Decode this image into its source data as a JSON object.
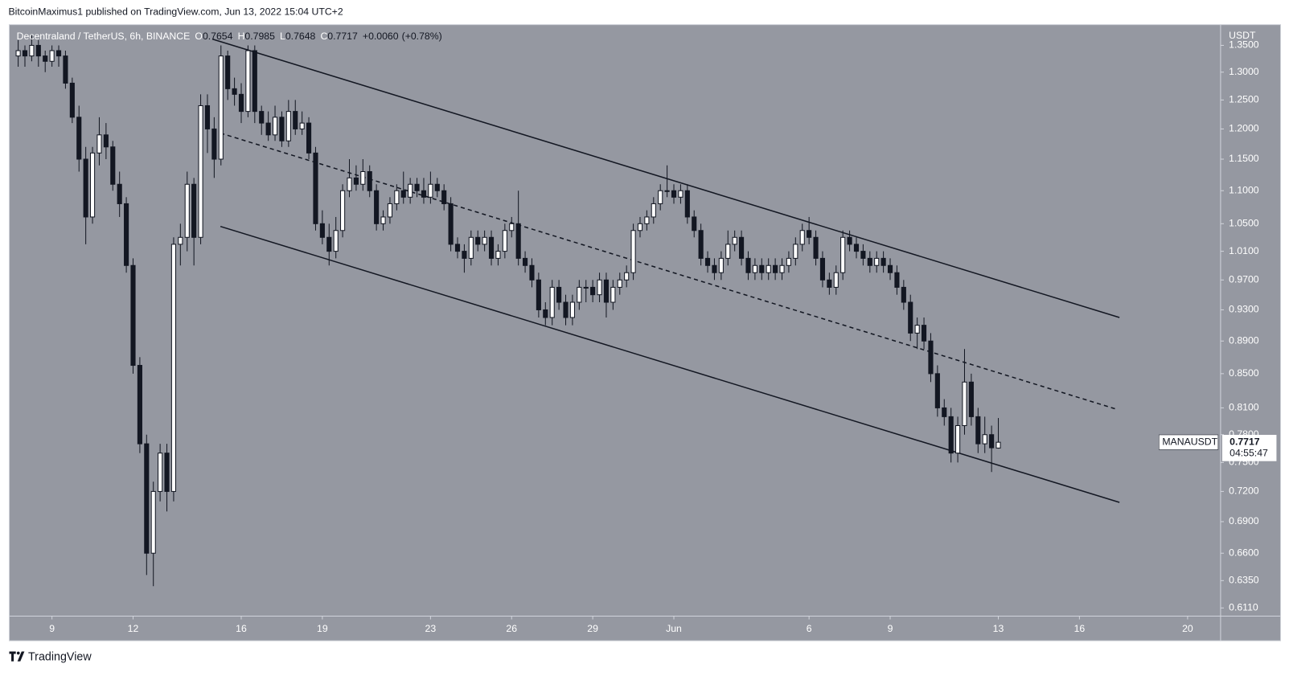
{
  "chart_data": {
    "type": "candlestick",
    "published": "BitcoinMaximus1 published on TradingView.com, Jun 13, 2022 15:04 UTC+2",
    "title": "Decentraland / TetherUS, 6h, BINANCE",
    "ohlc_labels": [
      "O",
      "H",
      "L",
      "C"
    ],
    "change": "+0.0060",
    "change_pct": "(+0.78%)",
    "y_axis_unit": "USDT",
    "countdown": "04:55:47",
    "brand": "TradingView",
    "log_scale": true,
    "background": "#9598a1",
    "up_color": "#ffffff",
    "down_color": "#131722",
    "x": [
      7.75,
      8,
      8.25,
      8.5,
      8.75,
      9,
      9.25,
      9.5,
      9.75,
      10,
      10.25,
      10.5,
      10.75,
      11,
      11.25,
      11.5,
      11.75,
      12,
      12.25,
      12.5,
      12.75,
      13,
      13.25,
      13.5,
      13.75,
      14,
      14.25,
      14.5,
      14.75,
      15,
      15.25,
      15.5,
      15.75,
      16,
      16.25,
      16.5,
      16.75,
      17,
      17.25,
      17.5,
      17.75,
      18,
      18.25,
      18.5,
      18.75,
      19,
      19.25,
      19.5,
      19.75,
      20,
      20.25,
      20.5,
      20.75,
      21,
      21.25,
      21.5,
      21.75,
      22,
      22.25,
      22.5,
      22.75,
      23,
      23.25,
      23.5,
      23.75,
      24,
      24.25,
      24.5,
      24.75,
      25,
      25.25,
      25.5,
      25.75,
      26,
      26.25,
      26.5,
      26.75,
      27,
      27.25,
      27.5,
      27.75,
      28,
      28.25,
      28.5,
      28.75,
      29,
      29.25,
      29.5,
      29.75,
      30,
      30.25,
      30.5,
      30.75,
      31,
      31.25,
      31.5,
      31.75,
      32,
      32.25,
      32.5,
      32.75,
      33,
      33.25,
      33.5,
      33.75,
      34,
      34.25,
      34.5,
      34.75,
      35,
      35.25,
      35.5,
      35.75,
      36,
      36.25,
      36.5,
      36.75,
      37,
      37.25,
      37.5,
      37.75,
      38,
      38.25,
      38.5,
      38.75,
      39,
      39.25,
      39.5,
      39.75,
      40,
      40.25,
      40.5,
      40.75,
      41,
      41.25,
      41.5,
      41.75,
      42,
      42.25,
      42.5,
      42.75,
      43,
      43.25,
      43.5,
      43.75,
      44
    ],
    "series": [
      {
        "name": "MANAUSDT",
        "values": [
          [
            1.33,
            1.36,
            1.31,
            1.34
          ],
          [
            1.34,
            1.35,
            1.31,
            1.33
          ],
          [
            1.33,
            1.37,
            1.32,
            1.35
          ],
          [
            1.35,
            1.36,
            1.31,
            1.33
          ],
          [
            1.33,
            1.34,
            1.3,
            1.32
          ],
          [
            1.32,
            1.35,
            1.31,
            1.34
          ],
          [
            1.34,
            1.35,
            1.31,
            1.33
          ],
          [
            1.33,
            1.34,
            1.27,
            1.28
          ],
          [
            1.28,
            1.29,
            1.21,
            1.22
          ],
          [
            1.22,
            1.24,
            1.13,
            1.15
          ],
          [
            1.15,
            1.17,
            1.02,
            1.06
          ],
          [
            1.06,
            1.17,
            1.05,
            1.16
          ],
          [
            1.16,
            1.22,
            1.14,
            1.19
          ],
          [
            1.19,
            1.21,
            1.15,
            1.17
          ],
          [
            1.17,
            1.18,
            1.1,
            1.11
          ],
          [
            1.11,
            1.13,
            1.06,
            1.08
          ],
          [
            1.08,
            1.09,
            0.98,
            0.99
          ],
          [
            0.99,
            1.0,
            0.85,
            0.86
          ],
          [
            0.86,
            0.87,
            0.76,
            0.77
          ],
          [
            0.77,
            0.78,
            0.64,
            0.66
          ],
          [
            0.66,
            0.73,
            0.63,
            0.72
          ],
          [
            0.72,
            0.77,
            0.71,
            0.76
          ],
          [
            0.76,
            0.77,
            0.7,
            0.72
          ],
          [
            0.72,
            1.03,
            0.71,
            1.02
          ],
          [
            1.02,
            1.05,
            0.99,
            1.03
          ],
          [
            1.03,
            1.13,
            1.01,
            1.11
          ],
          [
            1.11,
            1.12,
            0.99,
            1.03
          ],
          [
            1.03,
            1.26,
            1.02,
            1.24
          ],
          [
            1.24,
            1.26,
            1.16,
            1.2
          ],
          [
            1.2,
            1.22,
            1.12,
            1.15
          ],
          [
            1.15,
            1.35,
            1.14,
            1.33
          ],
          [
            1.33,
            1.34,
            1.25,
            1.27
          ],
          [
            1.27,
            1.29,
            1.24,
            1.26
          ],
          [
            1.26,
            1.28,
            1.21,
            1.23
          ],
          [
            1.23,
            1.35,
            1.22,
            1.34
          ],
          [
            1.34,
            1.35,
            1.21,
            1.23
          ],
          [
            1.23,
            1.24,
            1.19,
            1.21
          ],
          [
            1.21,
            1.23,
            1.18,
            1.19
          ],
          [
            1.19,
            1.24,
            1.18,
            1.22
          ],
          [
            1.22,
            1.23,
            1.17,
            1.18
          ],
          [
            1.18,
            1.25,
            1.17,
            1.23
          ],
          [
            1.23,
            1.25,
            1.19,
            1.2
          ],
          [
            1.2,
            1.23,
            1.19,
            1.21
          ],
          [
            1.21,
            1.22,
            1.15,
            1.16
          ],
          [
            1.16,
            1.17,
            1.04,
            1.05
          ],
          [
            1.05,
            1.07,
            1.02,
            1.03
          ],
          [
            1.03,
            1.05,
            0.99,
            1.01
          ],
          [
            1.01,
            1.06,
            1.0,
            1.04
          ],
          [
            1.04,
            1.11,
            1.03,
            1.1
          ],
          [
            1.1,
            1.15,
            1.09,
            1.12
          ],
          [
            1.12,
            1.14,
            1.1,
            1.11
          ],
          [
            1.11,
            1.15,
            1.1,
            1.13
          ],
          [
            1.13,
            1.14,
            1.09,
            1.1
          ],
          [
            1.1,
            1.11,
            1.04,
            1.05
          ],
          [
            1.05,
            1.07,
            1.04,
            1.06
          ],
          [
            1.06,
            1.09,
            1.05,
            1.08
          ],
          [
            1.08,
            1.11,
            1.07,
            1.1
          ],
          [
            1.1,
            1.13,
            1.08,
            1.09
          ],
          [
            1.09,
            1.12,
            1.08,
            1.11
          ],
          [
            1.11,
            1.12,
            1.09,
            1.1
          ],
          [
            1.1,
            1.12,
            1.08,
            1.09
          ],
          [
            1.09,
            1.13,
            1.08,
            1.11
          ],
          [
            1.11,
            1.12,
            1.09,
            1.1
          ],
          [
            1.1,
            1.11,
            1.07,
            1.08
          ],
          [
            1.08,
            1.09,
            1.01,
            1.02
          ],
          [
            1.02,
            1.03,
            1.0,
            1.01
          ],
          [
            1.01,
            1.02,
            0.98,
            1.0
          ],
          [
            1.0,
            1.04,
            0.99,
            1.03
          ],
          [
            1.03,
            1.04,
            1.01,
            1.02
          ],
          [
            1.02,
            1.04,
            1.01,
            1.03
          ],
          [
            1.03,
            1.04,
            0.99,
            1.0
          ],
          [
            1.0,
            1.02,
            0.99,
            1.01
          ],
          [
            1.01,
            1.05,
            1.0,
            1.04
          ],
          [
            1.04,
            1.06,
            1.03,
            1.05
          ],
          [
            1.05,
            1.1,
            0.99,
            1.0
          ],
          [
            1.0,
            1.01,
            0.98,
            0.99
          ],
          [
            0.99,
            1.0,
            0.96,
            0.97
          ],
          [
            0.97,
            0.98,
            0.92,
            0.93
          ],
          [
            0.93,
            0.94,
            0.91,
            0.92
          ],
          [
            0.92,
            0.97,
            0.91,
            0.96
          ],
          [
            0.96,
            0.97,
            0.93,
            0.94
          ],
          [
            0.94,
            0.95,
            0.91,
            0.92
          ],
          [
            0.92,
            0.95,
            0.91,
            0.94
          ],
          [
            0.94,
            0.97,
            0.93,
            0.96
          ],
          [
            0.96,
            0.97,
            0.94,
            0.96
          ],
          [
            0.96,
            0.97,
            0.94,
            0.95
          ],
          [
            0.95,
            0.98,
            0.94,
            0.97
          ],
          [
            0.97,
            0.98,
            0.92,
            0.94
          ],
          [
            0.94,
            0.97,
            0.93,
            0.96
          ],
          [
            0.96,
            0.98,
            0.95,
            0.97
          ],
          [
            0.97,
            0.99,
            0.96,
            0.98
          ],
          [
            0.98,
            1.05,
            0.97,
            1.04
          ],
          [
            1.04,
            1.06,
            1.03,
            1.05
          ],
          [
            1.05,
            1.07,
            1.04,
            1.06
          ],
          [
            1.06,
            1.09,
            1.05,
            1.08
          ],
          [
            1.08,
            1.11,
            1.07,
            1.1
          ],
          [
            1.1,
            1.14,
            1.09,
            1.1
          ],
          [
            1.1,
            1.11,
            1.08,
            1.09
          ],
          [
            1.09,
            1.11,
            1.08,
            1.1
          ],
          [
            1.1,
            1.11,
            1.05,
            1.06
          ],
          [
            1.06,
            1.07,
            1.03,
            1.04
          ],
          [
            1.04,
            1.05,
            0.99,
            1.0
          ],
          [
            1.0,
            1.01,
            0.98,
            0.99
          ],
          [
            0.99,
            1.0,
            0.97,
            0.98
          ],
          [
            0.98,
            1.01,
            0.97,
            1.0
          ],
          [
            1.0,
            1.04,
            0.99,
            1.02
          ],
          [
            1.02,
            1.04,
            1.01,
            1.03
          ],
          [
            1.03,
            1.04,
            0.99,
            1.0
          ],
          [
            1.0,
            1.01,
            0.97,
            0.98
          ],
          [
            0.98,
            1.0,
            0.97,
            0.99
          ],
          [
            0.99,
            1.0,
            0.97,
            0.98
          ],
          [
            0.98,
            1.0,
            0.97,
            0.99
          ],
          [
            0.99,
            1.0,
            0.97,
            0.98
          ],
          [
            0.98,
            1.0,
            0.97,
            0.99
          ],
          [
            0.99,
            1.01,
            0.98,
            1.0
          ],
          [
            1.0,
            1.03,
            0.99,
            1.02
          ],
          [
            1.02,
            1.05,
            1.01,
            1.04
          ],
          [
            1.04,
            1.06,
            1.02,
            1.03
          ],
          [
            1.03,
            1.04,
            0.99,
            1.0
          ],
          [
            1.0,
            1.01,
            0.96,
            0.97
          ],
          [
            0.97,
            0.98,
            0.95,
            0.96
          ],
          [
            0.96,
            0.99,
            0.95,
            0.98
          ],
          [
            0.98,
            1.04,
            0.97,
            1.03
          ],
          [
            1.03,
            1.04,
            1.01,
            1.02
          ],
          [
            1.02,
            1.03,
            1.0,
            1.01
          ],
          [
            1.01,
            1.02,
            0.99,
            1.0
          ],
          [
            1.0,
            1.01,
            0.98,
            0.99
          ],
          [
            0.99,
            1.01,
            0.98,
            1.0
          ],
          [
            1.0,
            1.01,
            0.98,
            0.99
          ],
          [
            0.99,
            1.0,
            0.97,
            0.98
          ],
          [
            0.98,
            0.99,
            0.95,
            0.96
          ],
          [
            0.96,
            0.97,
            0.93,
            0.94
          ],
          [
            0.94,
            0.95,
            0.89,
            0.9
          ],
          [
            0.9,
            0.92,
            0.88,
            0.91
          ],
          [
            0.91,
            0.92,
            0.88,
            0.89
          ],
          [
            0.89,
            0.9,
            0.84,
            0.85
          ],
          [
            0.85,
            0.86,
            0.8,
            0.81
          ],
          [
            0.81,
            0.82,
            0.79,
            0.8
          ],
          [
            0.8,
            0.81,
            0.75,
            0.76
          ],
          [
            0.76,
            0.8,
            0.75,
            0.79
          ],
          [
            0.79,
            0.88,
            0.78,
            0.84
          ],
          [
            0.84,
            0.85,
            0.79,
            0.8
          ],
          [
            0.8,
            0.81,
            0.76,
            0.77
          ],
          [
            0.77,
            0.8,
            0.76,
            0.78
          ],
          [
            0.78,
            0.79,
            0.74,
            0.7657
          ],
          [
            0.7654,
            0.7985,
            0.7648,
            0.7717
          ]
        ]
      }
    ],
    "trendlines": [
      {
        "style": "solid",
        "x": [
          14.93,
          48.48
        ],
        "y": [
          1.362,
          0.92
        ]
      },
      {
        "style": "dashed",
        "x": [
          15.23,
          48.42
        ],
        "y": [
          1.193,
          0.808
        ]
      },
      {
        "style": "solid",
        "x": [
          15.23,
          48.48
        ],
        "y": [
          1.046,
          0.709
        ]
      }
    ],
    "xlim": [
      7.42,
      52.22
    ],
    "ylim": [
      0.604,
      1.39
    ],
    "xticks": [
      9,
      12,
      16,
      19,
      23,
      26,
      29,
      {
        "value": 32,
        "label": "Jun"
      },
      {
        "value": 37,
        "label": "6"
      },
      {
        "value": 40,
        "label": "9"
      },
      {
        "value": 44,
        "label": "13"
      },
      {
        "value": 47,
        "label": "16"
      },
      {
        "value": 51,
        "label": "20"
      }
    ],
    "yticks": [
      {
        "value": 1.35,
        "label": "1.3500"
      },
      {
        "value": 1.3,
        "label": "1.3000"
      },
      {
        "value": 1.25,
        "label": "1.2500"
      },
      {
        "value": 1.2,
        "label": "1.2000"
      },
      {
        "value": 1.15,
        "label": "1.1500"
      },
      {
        "value": 1.1,
        "label": "1.1000"
      },
      {
        "value": 1.05,
        "label": "1.0500"
      },
      {
        "value": 1.01,
        "label": "1.0100"
      },
      {
        "value": 0.97,
        "label": "0.9700"
      },
      {
        "value": 0.93,
        "label": "0.9300"
      },
      {
        "value": 0.89,
        "label": "0.8900"
      },
      {
        "value": 0.85,
        "label": "0.8500"
      },
      {
        "value": 0.81,
        "label": "0.8100"
      },
      {
        "value": 0.78,
        "label": "0.7800"
      },
      {
        "value": 0.75,
        "label": "0.7500"
      },
      {
        "value": 0.72,
        "label": "0.7200"
      },
      {
        "value": 0.69,
        "label": "0.6900"
      },
      {
        "value": 0.66,
        "label": "0.6600"
      },
      {
        "value": 0.635,
        "label": "0.6350"
      },
      {
        "value": 0.611,
        "label": "0.6110"
      }
    ]
  }
}
